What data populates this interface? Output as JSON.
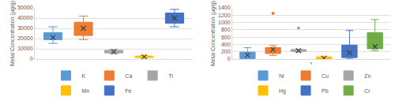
{
  "chart_data": [
    {
      "type": "box",
      "y_label": "Metal Concentration (µg/g)",
      "tick_labels": "y",
      "ylim": [
        0,
        50000
      ],
      "yticks": [
        0,
        10000,
        20000,
        30000,
        40000,
        50000
      ],
      "grid": true,
      "legend": "bottom",
      "series": [
        {
          "name": "K",
          "color": "#5b9bd5",
          "min": 15300,
          "q1": 18900,
          "median": 22000,
          "q3": 25800,
          "max": 31500,
          "mean": 21000,
          "outliers": []
        },
        {
          "name": "Ca",
          "color": "#ed7d31",
          "min": 19000,
          "q1": 23000,
          "median": 30000,
          "q3": 36000,
          "max": 42000,
          "mean": 30000,
          "outliers": []
        },
        {
          "name": "Ti",
          "color": "#a5a5a5",
          "min": 5000,
          "q1": 6000,
          "median": 7000,
          "q3": 8500,
          "max": 9500,
          "mean": 7200,
          "outliers": []
        },
        {
          "name": "Mn",
          "color": "#ffc000",
          "min": 1000,
          "q1": 1500,
          "median": 2000,
          "q3": 2800,
          "max": 3500,
          "mean": 2200,
          "outliers": []
        },
        {
          "name": "Fe",
          "color": "#4472c4",
          "min": 31500,
          "q1": 35000,
          "median": 41000,
          "q3": 45000,
          "max": 48500,
          "mean": 40000,
          "outliers": []
        }
      ]
    },
    {
      "type": "box",
      "y_label": "Metal Concentration (µg/g)",
      "categories": [
        "1"
      ],
      "ylim": [
        0,
        1400
      ],
      "yticks": [
        0,
        200,
        400,
        600,
        800,
        1000,
        1200,
        1400
      ],
      "grid": true,
      "legend": "bottom",
      "series": [
        {
          "name": "Ni",
          "color": "#5b9bd5",
          "min": 0,
          "q1": 10,
          "median": 60,
          "q3": 190,
          "max": 310,
          "mean": 110,
          "outliers": []
        },
        {
          "name": "Cu",
          "color": "#ed7d31",
          "min": 100,
          "q1": 150,
          "median": 250,
          "q3": 310,
          "max": 370,
          "mean": 260,
          "outliers": [
            1250
          ]
        },
        {
          "name": "Zn",
          "color": "#a5a5a5",
          "min": 190,
          "q1": 210,
          "median": 240,
          "q3": 260,
          "max": 270,
          "mean": 230,
          "outliers": [
            850
          ]
        },
        {
          "name": "Hg",
          "color": "#ffc000",
          "min": 0,
          "q1": 5,
          "median": 20,
          "q3": 60,
          "max": 80,
          "mean": 20,
          "outliers": []
        },
        {
          "name": "Pb",
          "color": "#4472c4",
          "min": 0,
          "q1": 40,
          "median": 140,
          "q3": 380,
          "max": 780,
          "mean": 170,
          "outliers": []
        },
        {
          "name": "Cr",
          "color": "#70ad47",
          "min": 230,
          "q1": 280,
          "median": 600,
          "q3": 720,
          "max": 1080,
          "mean": 340,
          "outliers": []
        }
      ]
    }
  ]
}
